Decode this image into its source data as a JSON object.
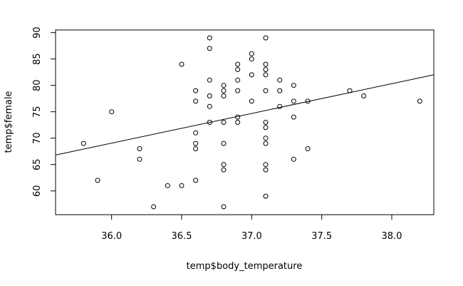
{
  "chart_data": {
    "type": "scatter",
    "title": "",
    "xlabel": "temp$body_temperature",
    "ylabel": "temp$female",
    "xlim": [
      35.6,
      38.3
    ],
    "ylim": [
      55.5,
      90.5
    ],
    "xticks": [
      36.0,
      36.5,
      37.0,
      37.5,
      38.0
    ],
    "xtick_labels": [
      "36.0",
      "36.5",
      "37.0",
      "37.5",
      "38.0"
    ],
    "yticks": [
      60,
      65,
      70,
      75,
      80,
      85,
      90
    ],
    "ytick_labels": [
      "60",
      "65",
      "70",
      "75",
      "80",
      "85",
      "90"
    ],
    "grid": false,
    "points": [
      {
        "x": 35.8,
        "y": 69
      },
      {
        "x": 35.9,
        "y": 62
      },
      {
        "x": 36.0,
        "y": 75
      },
      {
        "x": 36.2,
        "y": 68
      },
      {
        "x": 36.2,
        "y": 66
      },
      {
        "x": 36.3,
        "y": 57
      },
      {
        "x": 36.4,
        "y": 61
      },
      {
        "x": 36.5,
        "y": 84
      },
      {
        "x": 36.5,
        "y": 61
      },
      {
        "x": 36.6,
        "y": 79
      },
      {
        "x": 36.6,
        "y": 77
      },
      {
        "x": 36.6,
        "y": 71
      },
      {
        "x": 36.6,
        "y": 69
      },
      {
        "x": 36.6,
        "y": 68
      },
      {
        "x": 36.6,
        "y": 62
      },
      {
        "x": 36.7,
        "y": 89
      },
      {
        "x": 36.7,
        "y": 87
      },
      {
        "x": 36.7,
        "y": 81
      },
      {
        "x": 36.7,
        "y": 78
      },
      {
        "x": 36.7,
        "y": 76
      },
      {
        "x": 36.7,
        "y": 73
      },
      {
        "x": 36.8,
        "y": 80
      },
      {
        "x": 36.8,
        "y": 79
      },
      {
        "x": 36.8,
        "y": 78
      },
      {
        "x": 36.8,
        "y": 73
      },
      {
        "x": 36.8,
        "y": 69
      },
      {
        "x": 36.8,
        "y": 65
      },
      {
        "x": 36.8,
        "y": 64
      },
      {
        "x": 36.8,
        "y": 57
      },
      {
        "x": 36.9,
        "y": 84
      },
      {
        "x": 36.9,
        "y": 83
      },
      {
        "x": 36.9,
        "y": 81
      },
      {
        "x": 36.9,
        "y": 79
      },
      {
        "x": 36.9,
        "y": 74
      },
      {
        "x": 36.9,
        "y": 73
      },
      {
        "x": 37.0,
        "y": 86
      },
      {
        "x": 37.0,
        "y": 85
      },
      {
        "x": 37.0,
        "y": 82
      },
      {
        "x": 37.0,
        "y": 77
      },
      {
        "x": 37.1,
        "y": 89
      },
      {
        "x": 37.1,
        "y": 84
      },
      {
        "x": 37.1,
        "y": 83
      },
      {
        "x": 37.1,
        "y": 82
      },
      {
        "x": 37.1,
        "y": 79
      },
      {
        "x": 37.1,
        "y": 73
      },
      {
        "x": 37.1,
        "y": 72
      },
      {
        "x": 37.1,
        "y": 70
      },
      {
        "x": 37.1,
        "y": 69
      },
      {
        "x": 37.1,
        "y": 65
      },
      {
        "x": 37.1,
        "y": 64
      },
      {
        "x": 37.1,
        "y": 59
      },
      {
        "x": 37.2,
        "y": 81
      },
      {
        "x": 37.2,
        "y": 79
      },
      {
        "x": 37.2,
        "y": 76
      },
      {
        "x": 37.3,
        "y": 80
      },
      {
        "x": 37.3,
        "y": 77
      },
      {
        "x": 37.3,
        "y": 74
      },
      {
        "x": 37.3,
        "y": 66
      },
      {
        "x": 37.4,
        "y": 77
      },
      {
        "x": 37.4,
        "y": 68
      },
      {
        "x": 37.7,
        "y": 79
      },
      {
        "x": 37.8,
        "y": 78
      },
      {
        "x": 38.2,
        "y": 77
      }
    ],
    "regression_line": {
      "x": [
        35.6,
        38.3
      ],
      "y": [
        66.8,
        82.0
      ]
    }
  }
}
